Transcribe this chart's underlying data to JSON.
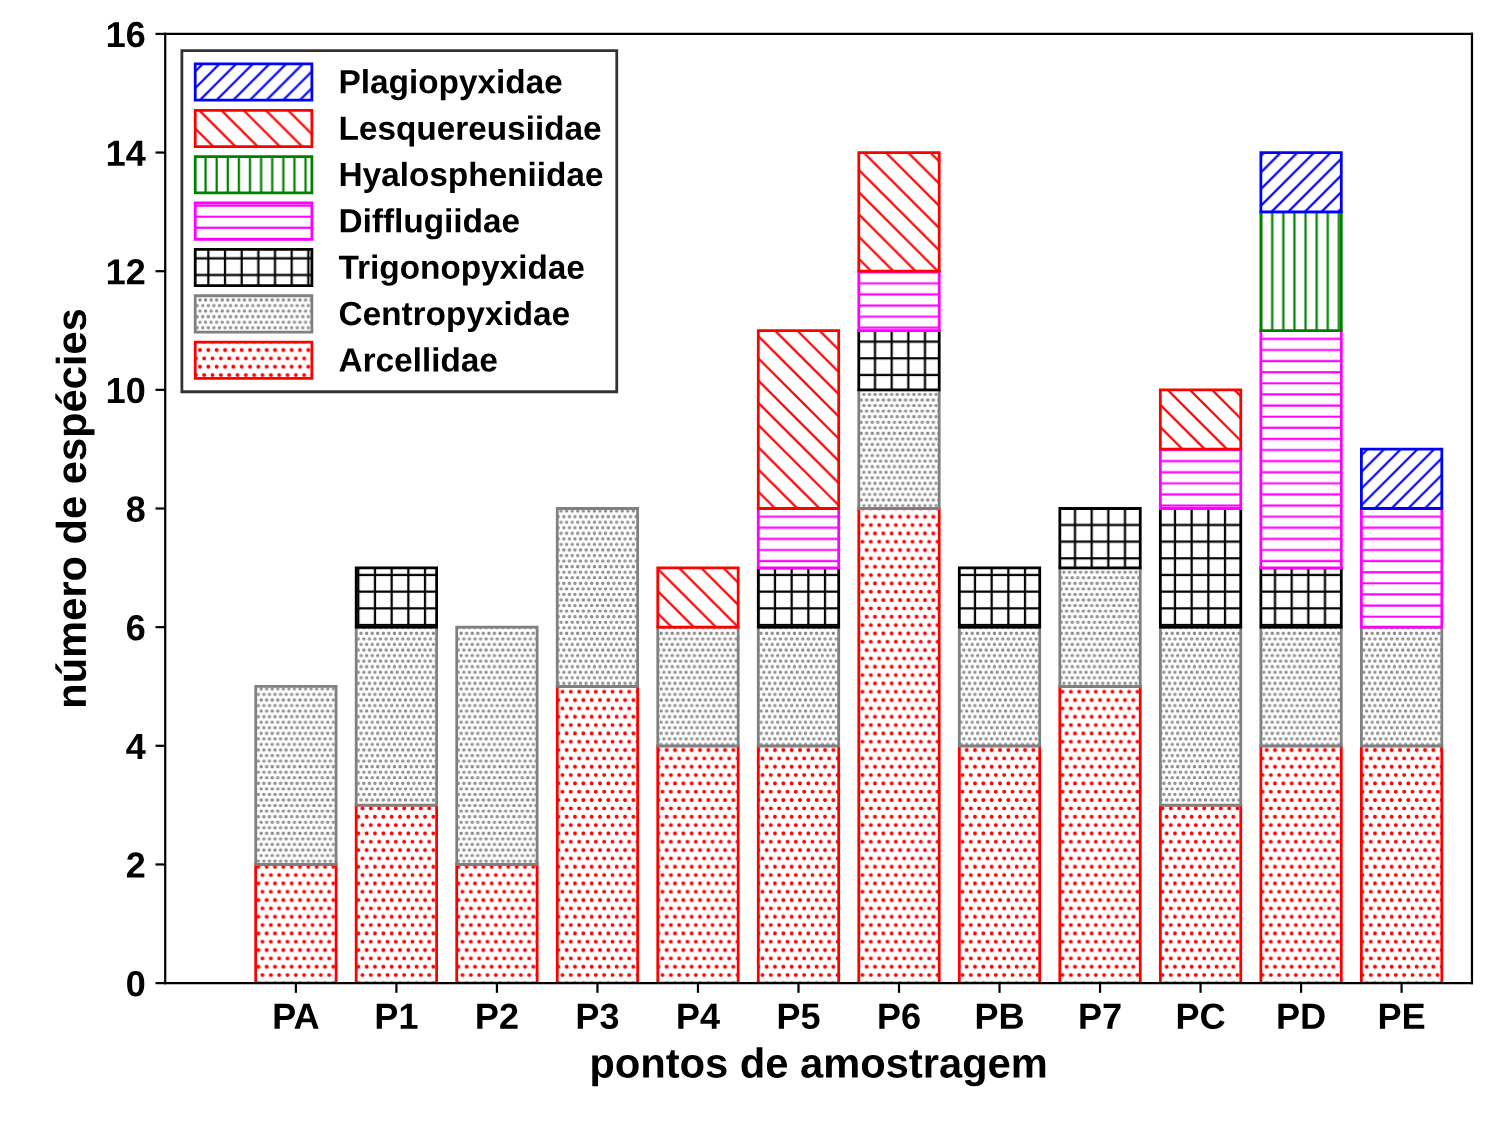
{
  "chart_data": {
    "type": "bar",
    "stacked": true,
    "xlabel": "pontos de amostragem",
    "ylabel": "número de espécies",
    "categories": [
      "PA",
      "P1",
      "P2",
      "P3",
      "P4",
      "P5",
      "P6",
      "PB",
      "P7",
      "PC",
      "PD",
      "PE"
    ],
    "series": [
      {
        "name": "Arcellidae",
        "color": "#ff0000",
        "values": [
          2,
          3,
          2,
          5,
          4,
          4,
          8,
          4,
          5,
          3,
          4,
          4
        ]
      },
      {
        "name": "Centropyxidae",
        "color": "#808080",
        "values": [
          3,
          3,
          4,
          3,
          2,
          2,
          2,
          2,
          2,
          3,
          2,
          2
        ]
      },
      {
        "name": "Trigonopyxidae",
        "color": "#000000",
        "values": [
          null,
          1,
          null,
          null,
          null,
          1,
          1,
          1,
          1,
          2,
          1,
          null
        ]
      },
      {
        "name": "Difflugiidae",
        "color": "#ff00ff",
        "values": [
          null,
          null,
          null,
          null,
          null,
          1,
          1,
          null,
          null,
          1,
          4,
          2
        ]
      },
      {
        "name": "Hyalospheniidae",
        "color": "#008000",
        "values": [
          null,
          null,
          null,
          null,
          null,
          null,
          null,
          null,
          null,
          null,
          2,
          null
        ]
      },
      {
        "name": "Lesquereusiidae",
        "color": "#ff0000",
        "values": [
          null,
          null,
          null,
          null,
          1,
          3,
          2,
          null,
          null,
          1,
          null,
          null
        ]
      },
      {
        "name": "Plagiopyxidae",
        "color": "#0000ff",
        "values": [
          null,
          null,
          null,
          null,
          null,
          null,
          null,
          null,
          null,
          null,
          1,
          1
        ]
      }
    ],
    "ylim": [
      0,
      16
    ],
    "yticks": [
      0,
      2,
      4,
      6,
      8,
      10,
      12,
      14,
      16
    ],
    "grid": false,
    "legend": "top left"
  }
}
